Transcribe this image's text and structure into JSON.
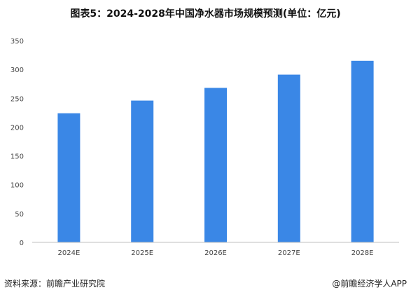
{
  "title": "图表5：2024-2028年中国净水器市场规模预测(单位：亿元)",
  "source": "资料来源：前瞻产业研究院",
  "brand": "@前瞻经济学人APP",
  "colors": {
    "bar": "#3a87e6",
    "axis": "#bfbfbf",
    "text": "#444444"
  },
  "chart_data": {
    "type": "bar",
    "title": "图表5：2024-2028年中国净水器市场规模预测(单位：亿元)",
    "categories": [
      "2024E",
      "2025E",
      "2026E",
      "2027E",
      "2028E"
    ],
    "values": [
      224,
      246,
      268,
      291,
      315
    ],
    "ylim": [
      0,
      350
    ],
    "yticks": [
      0,
      50,
      100,
      150,
      200,
      250,
      300,
      350
    ],
    "xlabel": "",
    "ylabel": "",
    "grid": false,
    "legend": "none"
  }
}
